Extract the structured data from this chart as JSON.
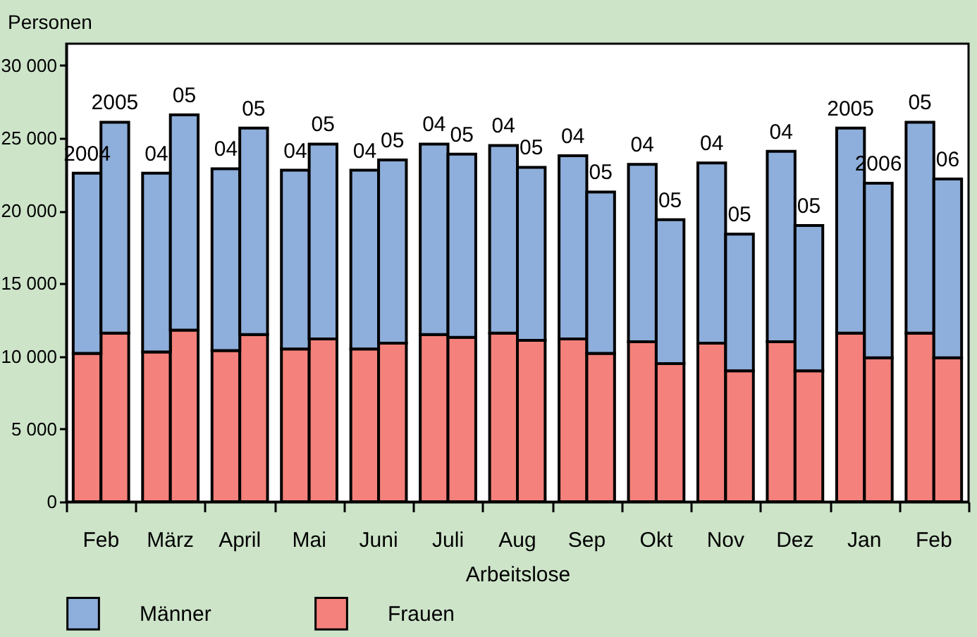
{
  "chart_data": {
    "type": "bar",
    "xlabel": "Arbeitslose",
    "ylabel": "Personen",
    "categories": [
      "2004",
      "2005",
      "04",
      "05",
      "04",
      "05",
      "04",
      "05",
      "04",
      "05",
      "04",
      "05",
      "04",
      "05",
      "04",
      "05",
      "04",
      "05",
      "04",
      "05",
      "04",
      "05",
      "2005",
      "2006",
      "05",
      "06"
    ],
    "annotations": [
      "Feb",
      "März",
      "April",
      "Mai",
      "Juni",
      "Juli",
      "Aug",
      "Sep",
      "Okt",
      "Nov",
      "Dez",
      "Jan",
      "Feb"
    ],
    "series": [
      {
        "name": "Frauen",
        "color": "#f4817b",
        "values": [
          10200,
          11600,
          10300,
          11800,
          10400,
          11500,
          10500,
          11200,
          10500,
          10900,
          11500,
          11300,
          11600,
          11100,
          11200,
          10200,
          11000,
          9500,
          10900,
          9000,
          11000,
          9000,
          11600,
          9900,
          11600,
          9900
        ]
      },
      {
        "name": "Männer",
        "color": "#8eaedb",
        "values": [
          12400,
          14500,
          12300,
          14800,
          12500,
          14200,
          12300,
          13400,
          12300,
          12600,
          13100,
          12600,
          12900,
          11900,
          12600,
          11100,
          12200,
          9900,
          12400,
          9400,
          13100,
          10000,
          14100,
          12000,
          14500,
          12300
        ]
      }
    ],
    "stacked": true,
    "ylim": [
      0,
      31500
    ],
    "yticks": [
      0,
      {
        "value": 5000,
        "label": "5 000"
      },
      {
        "value": 10000,
        "label": "10 000"
      },
      {
        "value": 15000,
        "label": "15 000"
      },
      {
        "value": 20000,
        "label": "20 000"
      },
      {
        "value": 25000,
        "label": "25 000"
      },
      {
        "value": 30000,
        "label": "30 000"
      }
    ],
    "grid": false,
    "legend": "bottom"
  }
}
